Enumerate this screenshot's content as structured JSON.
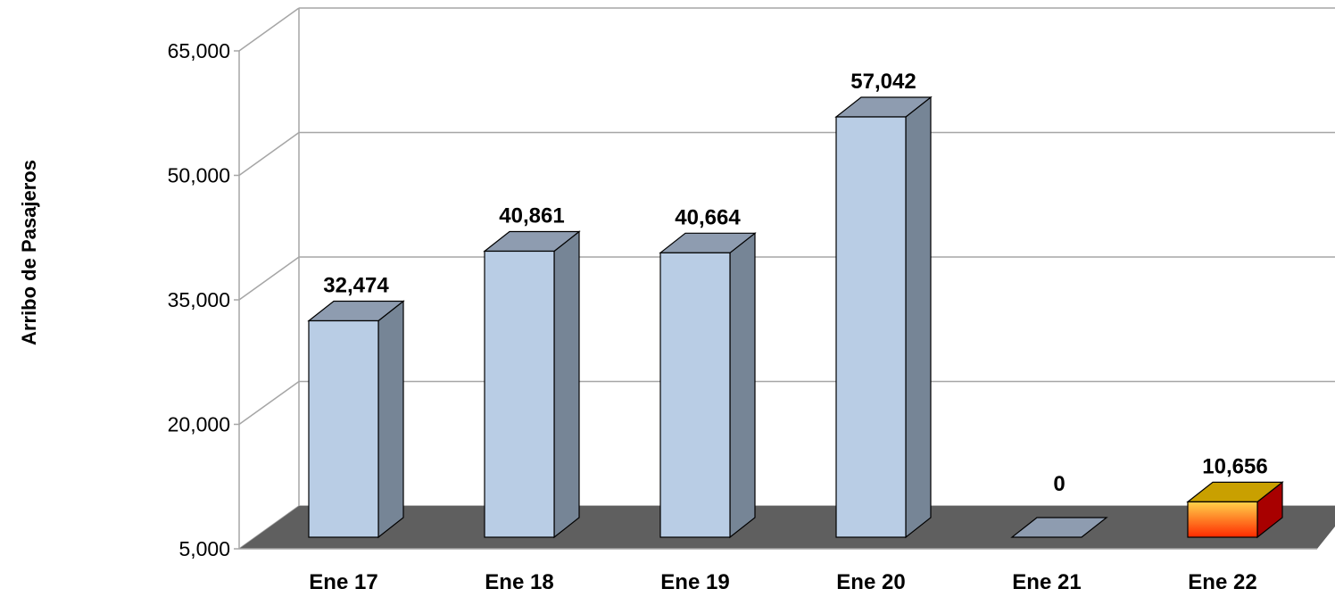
{
  "chart_data": {
    "type": "bar",
    "title": "",
    "xlabel": "",
    "ylabel": "Arribo de Pasajeros",
    "ylim": [
      5000,
      65000
    ],
    "yticks": [
      5000,
      20000,
      35000,
      50000,
      65000
    ],
    "ytick_labels": [
      "5,000",
      "20,000",
      "35,000",
      "50,000",
      "65,000"
    ],
    "categories": [
      "Ene 17",
      "Ene 18",
      "Ene 19",
      "Ene 20",
      "Ene 21",
      "Ene 22"
    ],
    "values": [
      32474,
      40861,
      40664,
      57042,
      0,
      10656
    ],
    "value_labels": [
      "32,474",
      "40,861",
      "40,664",
      "57,042",
      "0",
      "10,656"
    ],
    "grid": true,
    "style": "3d",
    "colors": {
      "bar_front": "#b9cde5",
      "bar_top": "#8e9cb0",
      "bar_side": "#768596",
      "highlight_top": "#c9a000",
      "highlight_side": "#a80000",
      "highlight_front_top": "#ffd24a",
      "highlight_front_bottom": "#ff2a00",
      "floor": "#5f5f5f",
      "grid": "#a6a6a6"
    }
  }
}
